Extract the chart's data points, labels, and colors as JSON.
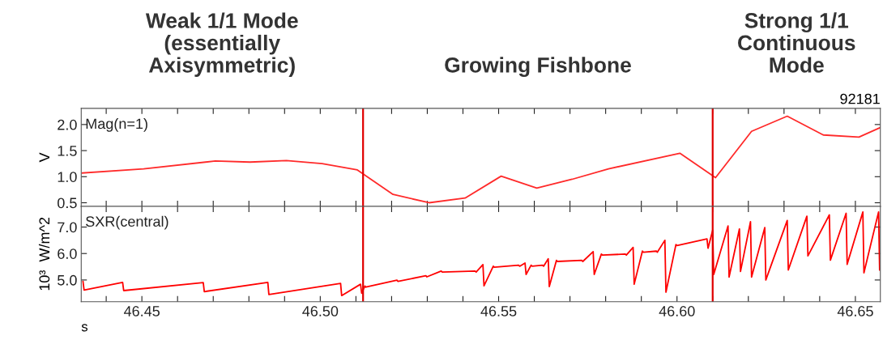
{
  "chart_data": [
    {
      "type": "line",
      "title": "92181",
      "annotations": [
        "Weak 1/1 Mode\n(essentially\nAxisymmetric)",
        "Growing Fishbone",
        "Strong 1/1\nContinuous\nMode"
      ],
      "ylabel": "V",
      "tick_labels": "y",
      "xlim": [
        46.433,
        46.657
      ],
      "ylim": [
        0.43,
        2.31
      ],
      "xticks": [
        46.44,
        46.45,
        46.46,
        46.47,
        46.48,
        46.49,
        46.5,
        46.51,
        46.52,
        46.53,
        46.54,
        46.55,
        46.56,
        46.57,
        46.58,
        46.59,
        46.6,
        46.61,
        46.62,
        46.63,
        46.64,
        46.65
      ],
      "yticks": [
        0.5,
        {
          "value": 1.0,
          "label": "1.0"
        },
        1.5,
        {
          "value": 2.0,
          "label": "2.0"
        }
      ],
      "grid": false,
      "legend": false,
      "ref_lines": [
        {
          "axis": "x",
          "value": 46.512,
          "color": "#e00000"
        },
        {
          "axis": "x",
          "value": 46.61,
          "color": "#e00000"
        }
      ],
      "series": [
        {
          "name": "Mag(n=1)",
          "color": "#ff2a2a",
          "x": [
            46.4333,
            46.4505,
            46.4706,
            46.4803,
            46.4905,
            46.5005,
            46.5104,
            46.5204,
            46.5305,
            46.5406,
            46.5507,
            46.5607,
            46.5706,
            46.5808,
            46.6008,
            46.6108,
            46.6209,
            46.6309,
            46.641,
            46.651,
            46.6569
          ],
          "values": [
            1.07,
            1.15,
            1.3,
            1.28,
            1.31,
            1.25,
            1.13,
            0.66,
            0.5,
            0.59,
            1.01,
            0.78,
            0.95,
            1.15,
            1.45,
            0.98,
            1.87,
            2.16,
            1.8,
            1.76,
            1.94
          ]
        }
      ]
    },
    {
      "type": "line",
      "xlabel": "s",
      "ylabel": "10³  W/m^2",
      "xlim": [
        46.433,
        46.657
      ],
      "ylim": [
        4.18,
        7.78
      ],
      "xticks": [
        {
          "value": 46.44,
          "label": null
        },
        46.45,
        {
          "value": 46.46,
          "label": null
        },
        {
          "value": 46.47,
          "label": null
        },
        {
          "value": 46.48,
          "label": null
        },
        {
          "value": 46.49,
          "label": null
        },
        {
          "value": 46.5,
          "label": "46.50"
        },
        {
          "value": 46.51,
          "label": null
        },
        {
          "value": 46.52,
          "label": null
        },
        {
          "value": 46.53,
          "label": null
        },
        {
          "value": 46.54,
          "label": null
        },
        46.55,
        {
          "value": 46.56,
          "label": null
        },
        {
          "value": 46.57,
          "label": null
        },
        {
          "value": 46.58,
          "label": null
        },
        {
          "value": 46.59,
          "label": null
        },
        {
          "value": 46.6,
          "label": "46.60"
        },
        {
          "value": 46.61,
          "label": null
        },
        {
          "value": 46.62,
          "label": null
        },
        {
          "value": 46.63,
          "label": null
        },
        {
          "value": 46.64,
          "label": null
        },
        46.65
      ],
      "yticks": [
        {
          "value": 5.0,
          "label": "5.0"
        },
        {
          "value": 6.0,
          "label": "6.0"
        },
        {
          "value": 7.0,
          "label": "7.0"
        }
      ],
      "grid": false,
      "legend": false,
      "ref_lines": [
        {
          "axis": "x",
          "value": 46.512,
          "color": "#e00000"
        },
        {
          "axis": "x",
          "value": 46.61,
          "color": "#e00000"
        }
      ],
      "series": [
        {
          "name": "SXR(central)",
          "color": "#ff0000",
          "x": [
            46.4335,
            46.4338,
            46.4446,
            46.4449,
            46.4672,
            46.4675,
            46.4853,
            46.4856,
            46.5057,
            46.506,
            46.5113,
            46.5116,
            46.5125,
            46.5128,
            46.5215,
            46.5218,
            46.5296,
            46.5299,
            46.5339,
            46.5342,
            46.5434,
            46.5437,
            46.5456,
            46.5459,
            46.5485,
            46.5488,
            46.5556,
            46.5559,
            46.5574,
            46.5577,
            46.5591,
            46.5594,
            46.5623,
            46.5626,
            46.5639,
            46.5642,
            46.5662,
            46.5665,
            46.5733,
            46.5736,
            46.5765,
            46.5768,
            46.5788,
            46.5791,
            46.5855,
            46.5858,
            46.5877,
            46.588,
            46.5903,
            46.5906,
            46.5942,
            46.5945,
            46.5966,
            46.5969,
            46.5997,
            46.6,
            46.6084,
            46.6087,
            46.61,
            46.6103,
            46.6143,
            46.6146,
            46.6175,
            46.6178,
            46.6206,
            46.6209,
            46.6246,
            46.6249,
            46.6309,
            46.6312,
            46.6364,
            46.6367,
            46.6427,
            46.643,
            46.6474,
            46.6477,
            46.6521,
            46.6524,
            46.6565,
            46.6568
          ],
          "values": [
            4.94,
            4.62,
            4.91,
            4.6,
            4.9,
            4.56,
            4.91,
            4.45,
            4.87,
            4.41,
            4.84,
            4.5,
            4.77,
            4.73,
            4.99,
            4.95,
            5.16,
            5.12,
            5.34,
            5.3,
            5.34,
            5.3,
            5.58,
            4.78,
            5.52,
            5.48,
            5.56,
            5.52,
            5.64,
            5.21,
            5.56,
            5.52,
            5.56,
            5.52,
            5.8,
            4.75,
            5.74,
            5.7,
            5.74,
            5.7,
            6.07,
            5.21,
            5.98,
            5.94,
            5.98,
            5.94,
            6.23,
            4.84,
            6.09,
            6.05,
            6.09,
            6.05,
            6.5,
            4.54,
            6.34,
            6.3,
            6.55,
            6.2,
            6.88,
            5.21,
            7.04,
            5.11,
            6.93,
            5.32,
            7.2,
            5.11,
            6.98,
            5.0,
            7.25,
            5.38,
            7.41,
            5.91,
            7.46,
            5.75,
            7.52,
            5.59,
            7.57,
            5.27,
            7.57,
            5.38
          ]
        }
      ]
    }
  ]
}
